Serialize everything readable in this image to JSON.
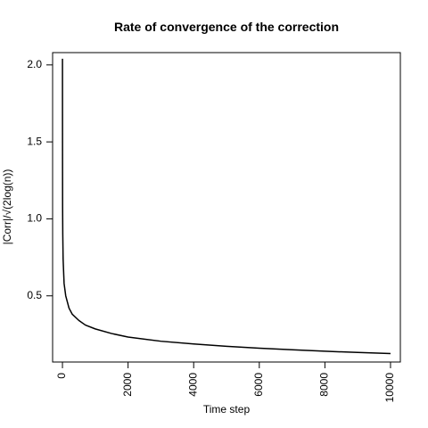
{
  "chart_data": {
    "type": "line",
    "title": "Rate of convergence of the correction",
    "xlabel": "Time step",
    "ylabel": "|Corr|/√(2log(n))",
    "xlim": [
      -300,
      10300
    ],
    "ylim": [
      0.07,
      2.08
    ],
    "grid": false,
    "xticks": [
      0,
      2000,
      4000,
      6000,
      8000,
      10000
    ],
    "xtick_labels": [
      "0",
      "2000",
      "4000",
      "6000",
      "8000",
      "10000"
    ],
    "yticks": [
      0.5,
      1.0,
      1.5,
      2.0
    ],
    "ytick_labels": [
      "0.5",
      "1.0",
      "1.5",
      "2.0"
    ],
    "series": [
      {
        "color": "#000000",
        "x": [
          1,
          2,
          3,
          5,
          10,
          20,
          50,
          100,
          200,
          300,
          500,
          700,
          1000,
          1500,
          2000,
          3000,
          4000,
          5000,
          6000,
          7000,
          8000,
          9000,
          10000
        ],
        "y": [
          2.04,
          1.64,
          1.38,
          1.08,
          0.9,
          0.74,
          0.58,
          0.5,
          0.42,
          0.38,
          0.34,
          0.31,
          0.285,
          0.255,
          0.232,
          0.205,
          0.187,
          0.172,
          0.16,
          0.15,
          0.14,
          0.132,
          0.125
        ]
      }
    ]
  }
}
